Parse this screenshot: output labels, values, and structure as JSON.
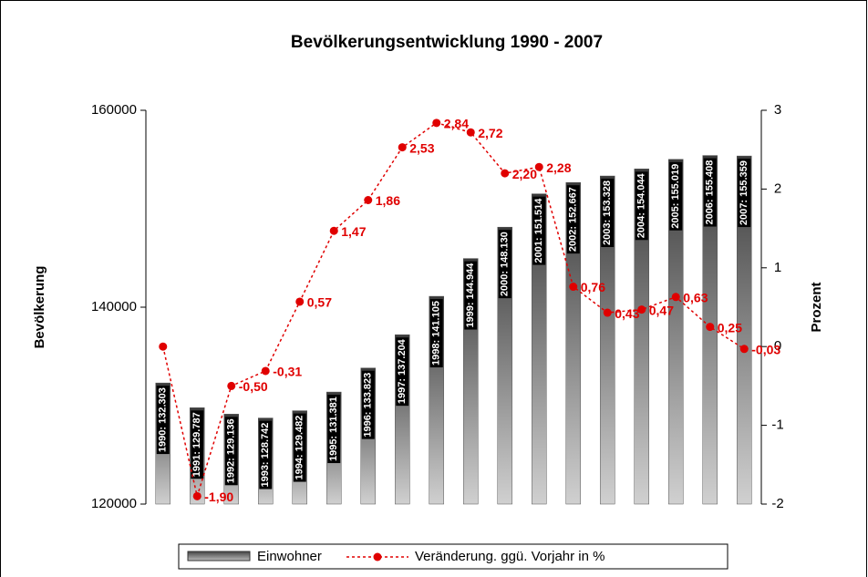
{
  "chart_data": {
    "type": "bar",
    "title": "Bevölkerungsentwicklung 1990 - 2007",
    "ylabel": "Bevölkerung",
    "y2label": "Prozent",
    "ylim": [
      120000,
      160000
    ],
    "yticks": [
      120000,
      140000,
      160000
    ],
    "y2lim": [
      -2,
      3
    ],
    "y2ticks": [
      -2,
      -1,
      0,
      1,
      2,
      3
    ],
    "legend": "bottom",
    "series": [
      {
        "name": "Einwohner",
        "type": "bar",
        "color": "#808080",
        "values": [
          132303,
          129787,
          129136,
          128742,
          129482,
          131381,
          133823,
          137204,
          141105,
          144944,
          148130,
          151514,
          152667,
          153328,
          154044,
          155019,
          155408,
          155359
        ],
        "value_labels": [
          "1990: 132.303",
          "1991: 129.787",
          "1992: 129.136",
          "1993: 128.742",
          "1994: 129.482",
          "1995: 131.381",
          "1996: 133.823",
          "1997: 137.204",
          "1998: 141.105",
          "1999: 144.944",
          "2000: 148.130",
          "2001: 151.514",
          "2002: 152.667",
          "2003: 153.328",
          "2004: 154.044",
          "2005: 155.019",
          "2006: 155.408",
          "2007: 155.359"
        ]
      },
      {
        "name": "Veränderung. ggü. Vorjahr in %",
        "type": "line",
        "axis": "y2",
        "color": "#e00000",
        "values": [
          0,
          -1.9,
          -0.5,
          -0.31,
          0.57,
          1.47,
          1.86,
          2.53,
          2.84,
          2.72,
          2.2,
          2.28,
          0.76,
          0.43,
          0.47,
          0.63,
          0.25,
          -0.03
        ],
        "value_labels": [
          null,
          "-1,90",
          "-0,50",
          "-0,31",
          "0,57",
          "1,47",
          "1,86",
          "2,53",
          "2,84",
          "2,72",
          "2,20",
          "2,28",
          "0,76",
          "0,43",
          "0,47",
          "0,63",
          "0,25",
          "-0,03"
        ]
      }
    ]
  }
}
